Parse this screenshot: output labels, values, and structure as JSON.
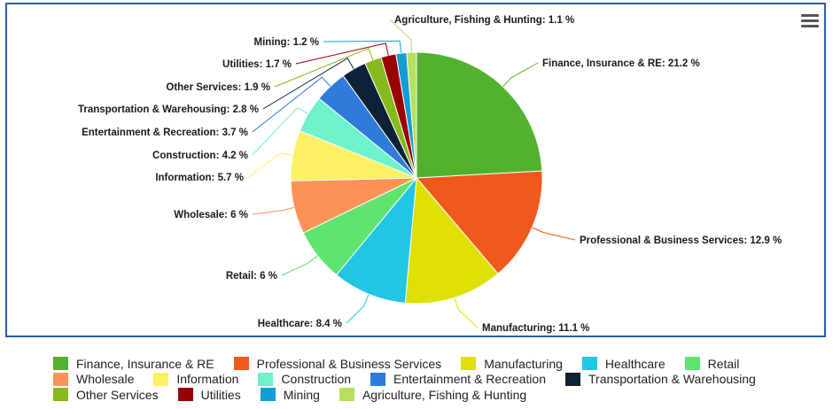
{
  "chart_data": {
    "type": "pie",
    "title": "",
    "slices": [
      {
        "name": "Finance, Insurance & RE",
        "label": "Finance, Insurance & RE: 21.2 %",
        "value": 21.2,
        "color": "#52b22f"
      },
      {
        "name": "Professional & Business Services",
        "label": "Professional & Business Services: 12.9 %",
        "value": 12.9,
        "color": "#ef5a1c"
      },
      {
        "name": "Manufacturing",
        "label": "Manufacturing: 11.1 %",
        "value": 11.1,
        "color": "#dde000"
      },
      {
        "name": "Healthcare",
        "label": "Healthcare: 8.4 %",
        "value": 8.4,
        "color": "#22c5e3"
      },
      {
        "name": "Retail",
        "label": "Retail: 6 %",
        "value": 6,
        "color": "#5ee46f"
      },
      {
        "name": "Wholesale",
        "label": "Wholesale: 6 %",
        "value": 6,
        "color": "#fd9257"
      },
      {
        "name": "Information",
        "label": "Information: 5.7 %",
        "value": 5.7,
        "color": "#fdf063"
      },
      {
        "name": "Construction",
        "label": "Construction: 4.2 %",
        "value": 4.2,
        "color": "#6ef2cb"
      },
      {
        "name": "Entertainment & Recreation",
        "label": "Entertainment & Recreation: 3.7 %",
        "value": 3.7,
        "color": "#2f7bd9"
      },
      {
        "name": "Transportation & Warehousing",
        "label": "Transportation & Warehousing: 2.8 %",
        "value": 2.8,
        "color": "#0d2137"
      },
      {
        "name": "Other Services",
        "label": "Other Services: 1.9 %",
        "value": 1.9,
        "color": "#86b91b"
      },
      {
        "name": "Utilities",
        "label": "Utilities: 1.7 %",
        "value": 1.7,
        "color": "#990000"
      },
      {
        "name": "Mining",
        "label": "Mining: 1.2 %",
        "value": 1.2,
        "color": "#139dd4"
      },
      {
        "name": "Agriculture, Fishing & Hunting",
        "label": "Agriculture, Fishing & Hunting: 1.1 %",
        "value": 1.1,
        "color": "#b4e05c"
      }
    ],
    "legend": {
      "placement": "bottom"
    }
  },
  "legend_rows": [
    [
      "Finance, Insurance & RE",
      "Professional & Business Services",
      "Manufacturing",
      "Healthcare",
      "Retail"
    ],
    [
      "Wholesale",
      "Information",
      "Construction",
      "Entertainment & Recreation",
      "Transportation & Warehousing"
    ],
    [
      "Other Services",
      "Utilities",
      "Mining",
      "Agriculture, Fishing & Hunting"
    ]
  ]
}
